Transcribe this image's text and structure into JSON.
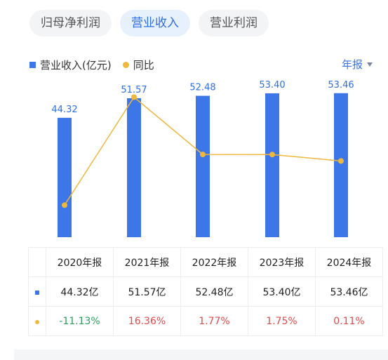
{
  "tabs": [
    {
      "label": "归母净利润",
      "active": false
    },
    {
      "label": "营业收入",
      "active": true
    },
    {
      "label": "营业利润",
      "active": false
    }
  ],
  "legend": {
    "bar_label": "营业收入(亿元)",
    "line_label": "同比"
  },
  "period_selector": {
    "label": "年报"
  },
  "colors": {
    "bar": "#3d76e6",
    "line": "#f0b73d",
    "positive": "#e04b4b",
    "negative": "#2e9e5b",
    "accent": "#2f6fe0"
  },
  "table": {
    "headers": [
      "2020年报",
      "2021年报",
      "2022年报",
      "2023年报",
      "2024年报"
    ],
    "revenue_row": [
      "44.32亿",
      "51.57亿",
      "52.48亿",
      "53.40亿",
      "53.46亿"
    ],
    "yoy_row": [
      "-11.13%",
      "16.36%",
      "1.77%",
      "1.75%",
      "0.11%"
    ]
  },
  "chart_data": {
    "type": "bar",
    "categories": [
      "2020年报",
      "2021年报",
      "2022年报",
      "2023年报",
      "2024年报"
    ],
    "series": [
      {
        "name": "营业收入(亿元)",
        "type": "bar",
        "values": [
          44.32,
          51.57,
          52.48,
          53.4,
          53.46
        ],
        "labels": [
          "44.32",
          "51.57",
          "52.48",
          "53.40",
          "53.46"
        ]
      },
      {
        "name": "同比",
        "type": "line",
        "values": [
          -11.13,
          16.36,
          1.77,
          1.75,
          0.11
        ]
      }
    ],
    "ylim_bar": [
      0,
      56
    ],
    "ylim_line": [
      -25,
      25
    ],
    "grid": false,
    "legend_position": "top-left"
  }
}
